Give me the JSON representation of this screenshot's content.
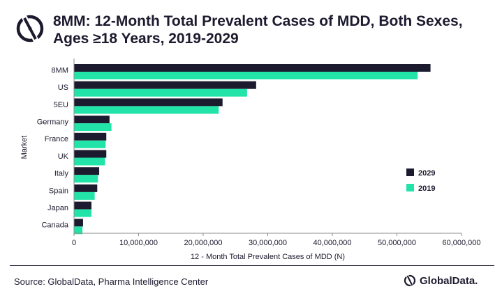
{
  "header": {
    "title_line1": "8MM: 12-Month Total Prevalent Cases of MDD, Both Sexes,",
    "title_line2": "Ages ≥18 Years, 2019-2029"
  },
  "footer": {
    "source": "Source: GlobalData, Pharma Intelligence Center",
    "brand": "GlobalData."
  },
  "chart_data": {
    "type": "bar",
    "orientation": "horizontal",
    "title": "8MM: 12-Month Total Prevalent Cases of MDD, Both Sexes, Ages ≥18 Years, 2019-2029",
    "xlabel": "12 - Month Total Prevalent Cases of MDD (N)",
    "ylabel": "Market",
    "categories": [
      "8MM",
      "US",
      "5EU",
      "Germany",
      "France",
      "UK",
      "Italy",
      "Spain",
      "Japan",
      "Canada"
    ],
    "series": [
      {
        "name": "2029",
        "color": "#1c1a2e",
        "values": [
          55200000,
          28200000,
          23000000,
          5500000,
          5000000,
          5000000,
          3900000,
          3600000,
          2700000,
          1400000
        ]
      },
      {
        "name": "2019",
        "color": "#22e3a8",
        "values": [
          53200000,
          26800000,
          22400000,
          5800000,
          4900000,
          4800000,
          3700000,
          3200000,
          2700000,
          1300000
        ]
      }
    ],
    "xlim": [
      0,
      60000000
    ],
    "xticks": [
      0,
      10000000,
      20000000,
      30000000,
      40000000,
      50000000,
      60000000
    ],
    "xtick_labels": [
      "0",
      "10,000,000",
      "20,000,000",
      "30,000,000",
      "40,000,000",
      "50,000,000",
      "60,000,000"
    ],
    "legend_order": [
      "2029",
      "2019"
    ],
    "legend_position": "right",
    "grid": false
  }
}
